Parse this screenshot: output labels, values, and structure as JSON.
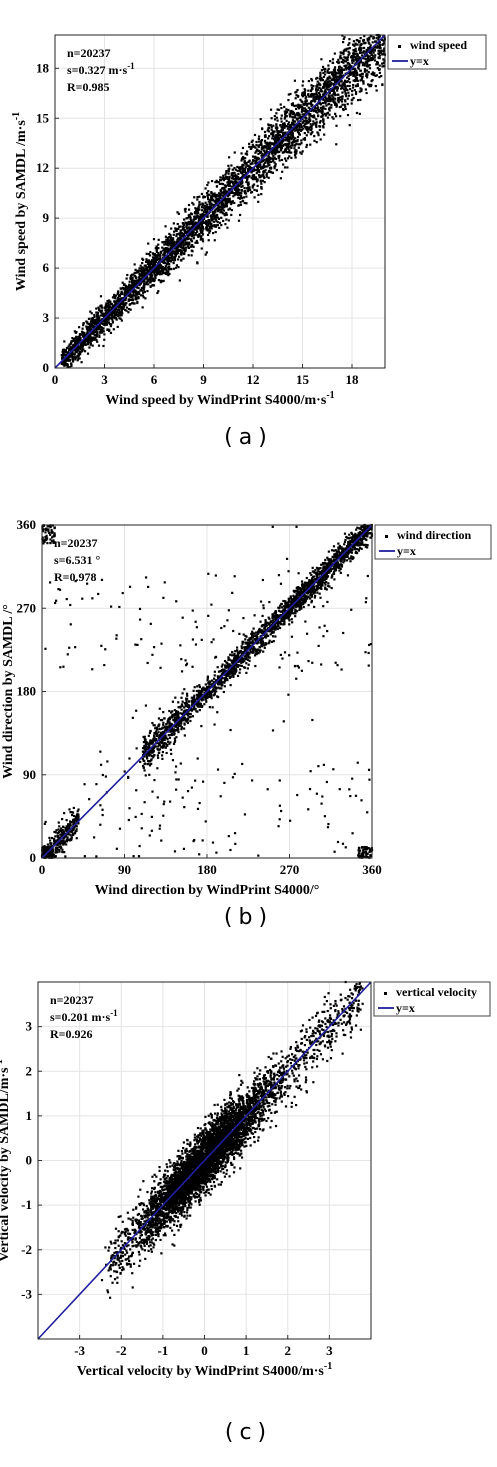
{
  "chart_data": [
    {
      "type": "scatter",
      "panel": "a",
      "caption": "(a)",
      "xlabel": "Wind speed by WindPrint S4000/m·s-1",
      "ylabel": "Wind speed by SAMDL /m·s-1",
      "xlim": [
        0,
        20
      ],
      "ylim": [
        0,
        20
      ],
      "xticks": [
        "0",
        "3",
        "6",
        "9",
        "12",
        "15",
        "18"
      ],
      "yticks": [
        "0",
        "3",
        "6",
        "9",
        "12",
        "15",
        "18"
      ],
      "grid": true,
      "legend_position": "outside-top-right",
      "annotations": [
        "n=20237",
        "s=0.327 m·s-1",
        "R=0.985"
      ],
      "series": [
        {
          "name": "wind speed",
          "kind": "scatter",
          "color": "#000000",
          "approx_count": 20237
        },
        {
          "name": "y=x",
          "kind": "line",
          "color": "#1f1f9f",
          "x": [
            0,
            20
          ],
          "y": [
            0,
            20
          ]
        }
      ]
    },
    {
      "type": "scatter",
      "panel": "b",
      "caption": "(b)",
      "xlabel": "Wind direction by WindPrint S4000/°",
      "ylabel": "Wind direction by SAMDL /°",
      "xlim": [
        0,
        360
      ],
      "ylim": [
        0,
        360
      ],
      "xticks": [
        "0",
        "90",
        "180",
        "270",
        "360"
      ],
      "yticks": [
        "0",
        "90",
        "180",
        "270",
        "360"
      ],
      "grid": true,
      "legend_position": "outside-top-right",
      "annotations": [
        "n=20237",
        "s=6.531 °",
        "R=0.978"
      ],
      "series": [
        {
          "name": "wind direction",
          "kind": "scatter",
          "color": "#000000",
          "approx_count": 20237
        },
        {
          "name": "y=x",
          "kind": "line",
          "color": "#1f1f9f",
          "x": [
            0,
            360
          ],
          "y": [
            0,
            360
          ]
        }
      ]
    },
    {
      "type": "scatter",
      "panel": "c",
      "caption": "(c)",
      "xlabel": "Vertical velocity by WindPrint S4000/m·s-1",
      "ylabel": "Vertical velocity by SAMDL/m·s-1",
      "xlim": [
        -4,
        4
      ],
      "ylim": [
        -4,
        4
      ],
      "xticks": [
        "-3",
        "-2",
        "-1",
        "0",
        "1",
        "2",
        "3"
      ],
      "yticks": [
        "-3",
        "-2",
        "-1",
        "0",
        "1",
        "2",
        "3"
      ],
      "grid": true,
      "legend_position": "outside-top-right",
      "annotations": [
        "n=20237",
        "s=0.201 m·s-1",
        "R=0.926"
      ],
      "series": [
        {
          "name": "vertical velocity",
          "kind": "scatter",
          "color": "#000000",
          "approx_count": 20237
        },
        {
          "name": "y=x",
          "kind": "line",
          "color": "#1f1f9f",
          "x": [
            -4,
            4
          ],
          "y": [
            -4,
            4
          ]
        }
      ]
    }
  ]
}
